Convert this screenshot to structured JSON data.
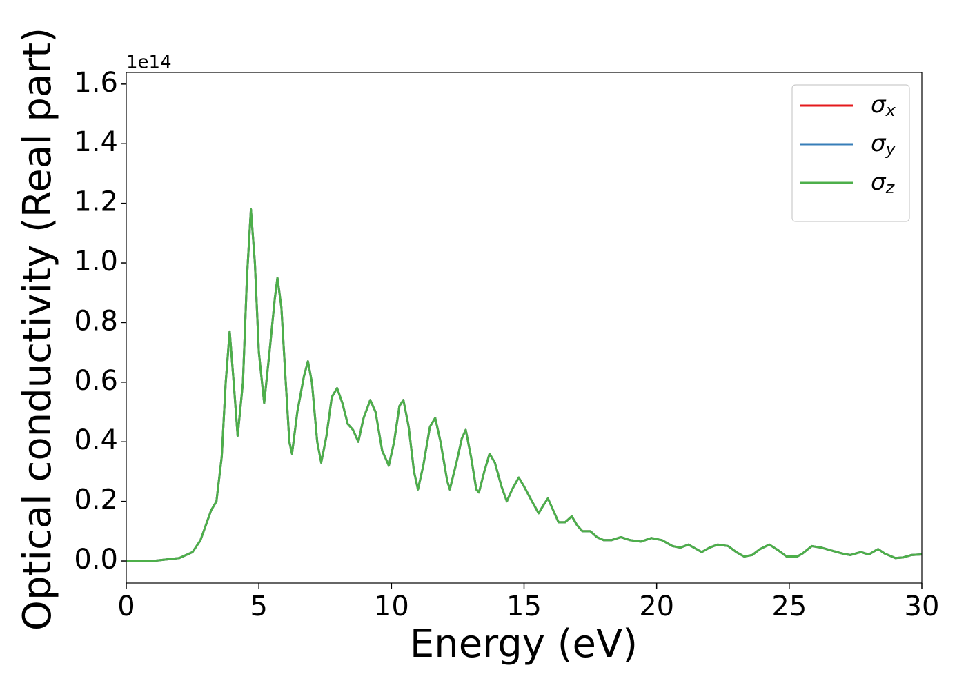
{
  "chart_data": {
    "type": "line",
    "x_label": "Energy (eV)",
    "y_label": "Optical conductivity (Real part)",
    "y_offset_label": "1e14",
    "xlim": [
      0,
      30
    ],
    "xticks": [
      0,
      5,
      10,
      15,
      20,
      25,
      30
    ],
    "ylim": [
      -0.074,
      1.639
    ],
    "yticks": [
      {
        "value": 0,
        "label": "0.0"
      },
      0.2,
      0.4,
      0.6,
      0.8,
      {
        "value": 1,
        "label": "1.0"
      },
      1.2,
      1.4,
      1.6
    ],
    "legend": "upper right",
    "x": [
      0,
      1,
      2,
      2.5,
      2.8,
      3.0,
      3.2,
      3.4,
      3.6,
      3.75,
      3.9,
      4.05,
      4.2,
      4.4,
      4.55,
      4.7,
      4.85,
      5.0,
      5.2,
      5.4,
      5.6,
      5.7,
      5.85,
      6.0,
      6.15,
      6.25,
      6.45,
      6.7,
      6.85,
      7.0,
      7.2,
      7.35,
      7.55,
      7.75,
      7.95,
      8.15,
      8.35,
      8.55,
      8.75,
      8.95,
      9.2,
      9.4,
      9.65,
      9.9,
      10.1,
      10.3,
      10.45,
      10.65,
      10.85,
      11.0,
      11.2,
      11.45,
      11.65,
      11.85,
      12.1,
      12.2,
      12.45,
      12.65,
      12.8,
      13.0,
      13.2,
      13.3,
      13.5,
      13.7,
      13.9,
      14.15,
      14.35,
      14.55,
      14.8,
      15.0,
      15.3,
      15.55,
      15.75,
      15.9,
      16.05,
      16.3,
      16.55,
      16.8,
      17.0,
      17.2,
      17.5,
      17.75,
      18.0,
      18.3,
      18.65,
      19.0,
      19.4,
      19.8,
      20.2,
      20.6,
      20.9,
      21.2,
      21.5,
      21.7,
      22.0,
      22.3,
      22.7,
      23.0,
      23.3,
      23.6,
      23.9,
      24.25,
      24.6,
      24.9,
      25.3,
      25.5,
      25.85,
      26.2,
      26.6,
      27.0,
      27.3,
      27.7,
      28.0,
      28.35,
      28.6,
      29.0,
      29.3,
      29.6,
      30.0
    ],
    "series": [
      {
        "name": "σx",
        "color": "#e41a1c",
        "values": [
          0,
          0,
          0.01,
          0.03,
          0.07,
          0.12,
          0.17,
          0.2,
          0.35,
          0.6,
          0.77,
          0.6,
          0.42,
          0.6,
          0.95,
          1.18,
          1.0,
          0.7,
          0.53,
          0.7,
          0.88,
          0.95,
          0.85,
          0.62,
          0.4,
          0.36,
          0.5,
          0.62,
          0.67,
          0.6,
          0.4,
          0.33,
          0.42,
          0.55,
          0.58,
          0.53,
          0.46,
          0.44,
          0.4,
          0.48,
          0.54,
          0.5,
          0.37,
          0.32,
          0.4,
          0.52,
          0.54,
          0.45,
          0.3,
          0.24,
          0.32,
          0.45,
          0.48,
          0.4,
          0.27,
          0.24,
          0.33,
          0.41,
          0.44,
          0.35,
          0.24,
          0.23,
          0.3,
          0.36,
          0.33,
          0.25,
          0.2,
          0.24,
          0.28,
          0.25,
          0.2,
          0.16,
          0.19,
          0.21,
          0.18,
          0.13,
          0.13,
          0.15,
          0.12,
          0.1,
          0.1,
          0.08,
          0.07,
          0.07,
          0.08,
          0.07,
          0.065,
          0.077,
          0.07,
          0.05,
          0.045,
          0.055,
          0.04,
          0.03,
          0.045,
          0.055,
          0.05,
          0.03,
          0.015,
          0.02,
          0.04,
          0.055,
          0.035,
          0.015,
          0.015,
          0.025,
          0.05,
          0.045,
          0.035,
          0.025,
          0.02,
          0.03,
          0.022,
          0.04,
          0.025,
          0.01,
          0.012,
          0.02,
          0.022
        ]
      },
      {
        "name": "σy",
        "color": "#377eb8",
        "values": [
          0,
          0,
          0.01,
          0.03,
          0.07,
          0.12,
          0.17,
          0.2,
          0.35,
          0.6,
          0.77,
          0.6,
          0.42,
          0.6,
          0.95,
          1.18,
          1.0,
          0.7,
          0.53,
          0.7,
          0.88,
          0.95,
          0.85,
          0.62,
          0.4,
          0.36,
          0.5,
          0.62,
          0.67,
          0.6,
          0.4,
          0.33,
          0.42,
          0.55,
          0.58,
          0.53,
          0.46,
          0.44,
          0.4,
          0.48,
          0.54,
          0.5,
          0.37,
          0.32,
          0.4,
          0.52,
          0.54,
          0.45,
          0.3,
          0.24,
          0.32,
          0.45,
          0.48,
          0.4,
          0.27,
          0.24,
          0.33,
          0.41,
          0.44,
          0.35,
          0.24,
          0.23,
          0.3,
          0.36,
          0.33,
          0.25,
          0.2,
          0.24,
          0.28,
          0.25,
          0.2,
          0.16,
          0.19,
          0.21,
          0.18,
          0.13,
          0.13,
          0.15,
          0.12,
          0.1,
          0.1,
          0.08,
          0.07,
          0.07,
          0.08,
          0.07,
          0.065,
          0.077,
          0.07,
          0.05,
          0.045,
          0.055,
          0.04,
          0.03,
          0.045,
          0.055,
          0.05,
          0.03,
          0.015,
          0.02,
          0.04,
          0.055,
          0.035,
          0.015,
          0.015,
          0.025,
          0.05,
          0.045,
          0.035,
          0.025,
          0.02,
          0.03,
          0.022,
          0.04,
          0.025,
          0.01,
          0.012,
          0.02,
          0.022
        ]
      },
      {
        "name": "σz",
        "color": "#4daf4a",
        "values": [
          0,
          0,
          0.01,
          0.03,
          0.07,
          0.12,
          0.17,
          0.2,
          0.35,
          0.6,
          0.77,
          0.6,
          0.42,
          0.6,
          0.95,
          1.18,
          1.0,
          0.7,
          0.53,
          0.7,
          0.88,
          0.95,
          0.85,
          0.62,
          0.4,
          0.36,
          0.5,
          0.62,
          0.67,
          0.6,
          0.4,
          0.33,
          0.42,
          0.55,
          0.58,
          0.53,
          0.46,
          0.44,
          0.4,
          0.48,
          0.54,
          0.5,
          0.37,
          0.32,
          0.4,
          0.52,
          0.54,
          0.45,
          0.3,
          0.24,
          0.32,
          0.45,
          0.48,
          0.4,
          0.27,
          0.24,
          0.33,
          0.41,
          0.44,
          0.35,
          0.24,
          0.23,
          0.3,
          0.36,
          0.33,
          0.25,
          0.2,
          0.24,
          0.28,
          0.25,
          0.2,
          0.16,
          0.19,
          0.21,
          0.18,
          0.13,
          0.13,
          0.15,
          0.12,
          0.1,
          0.1,
          0.08,
          0.07,
          0.07,
          0.08,
          0.07,
          0.065,
          0.077,
          0.07,
          0.05,
          0.045,
          0.055,
          0.04,
          0.03,
          0.045,
          0.055,
          0.05,
          0.03,
          0.015,
          0.02,
          0.04,
          0.055,
          0.035,
          0.015,
          0.015,
          0.025,
          0.05,
          0.045,
          0.035,
          0.025,
          0.02,
          0.03,
          0.022,
          0.04,
          0.025,
          0.01,
          0.012,
          0.02,
          0.022
        ]
      }
    ]
  }
}
